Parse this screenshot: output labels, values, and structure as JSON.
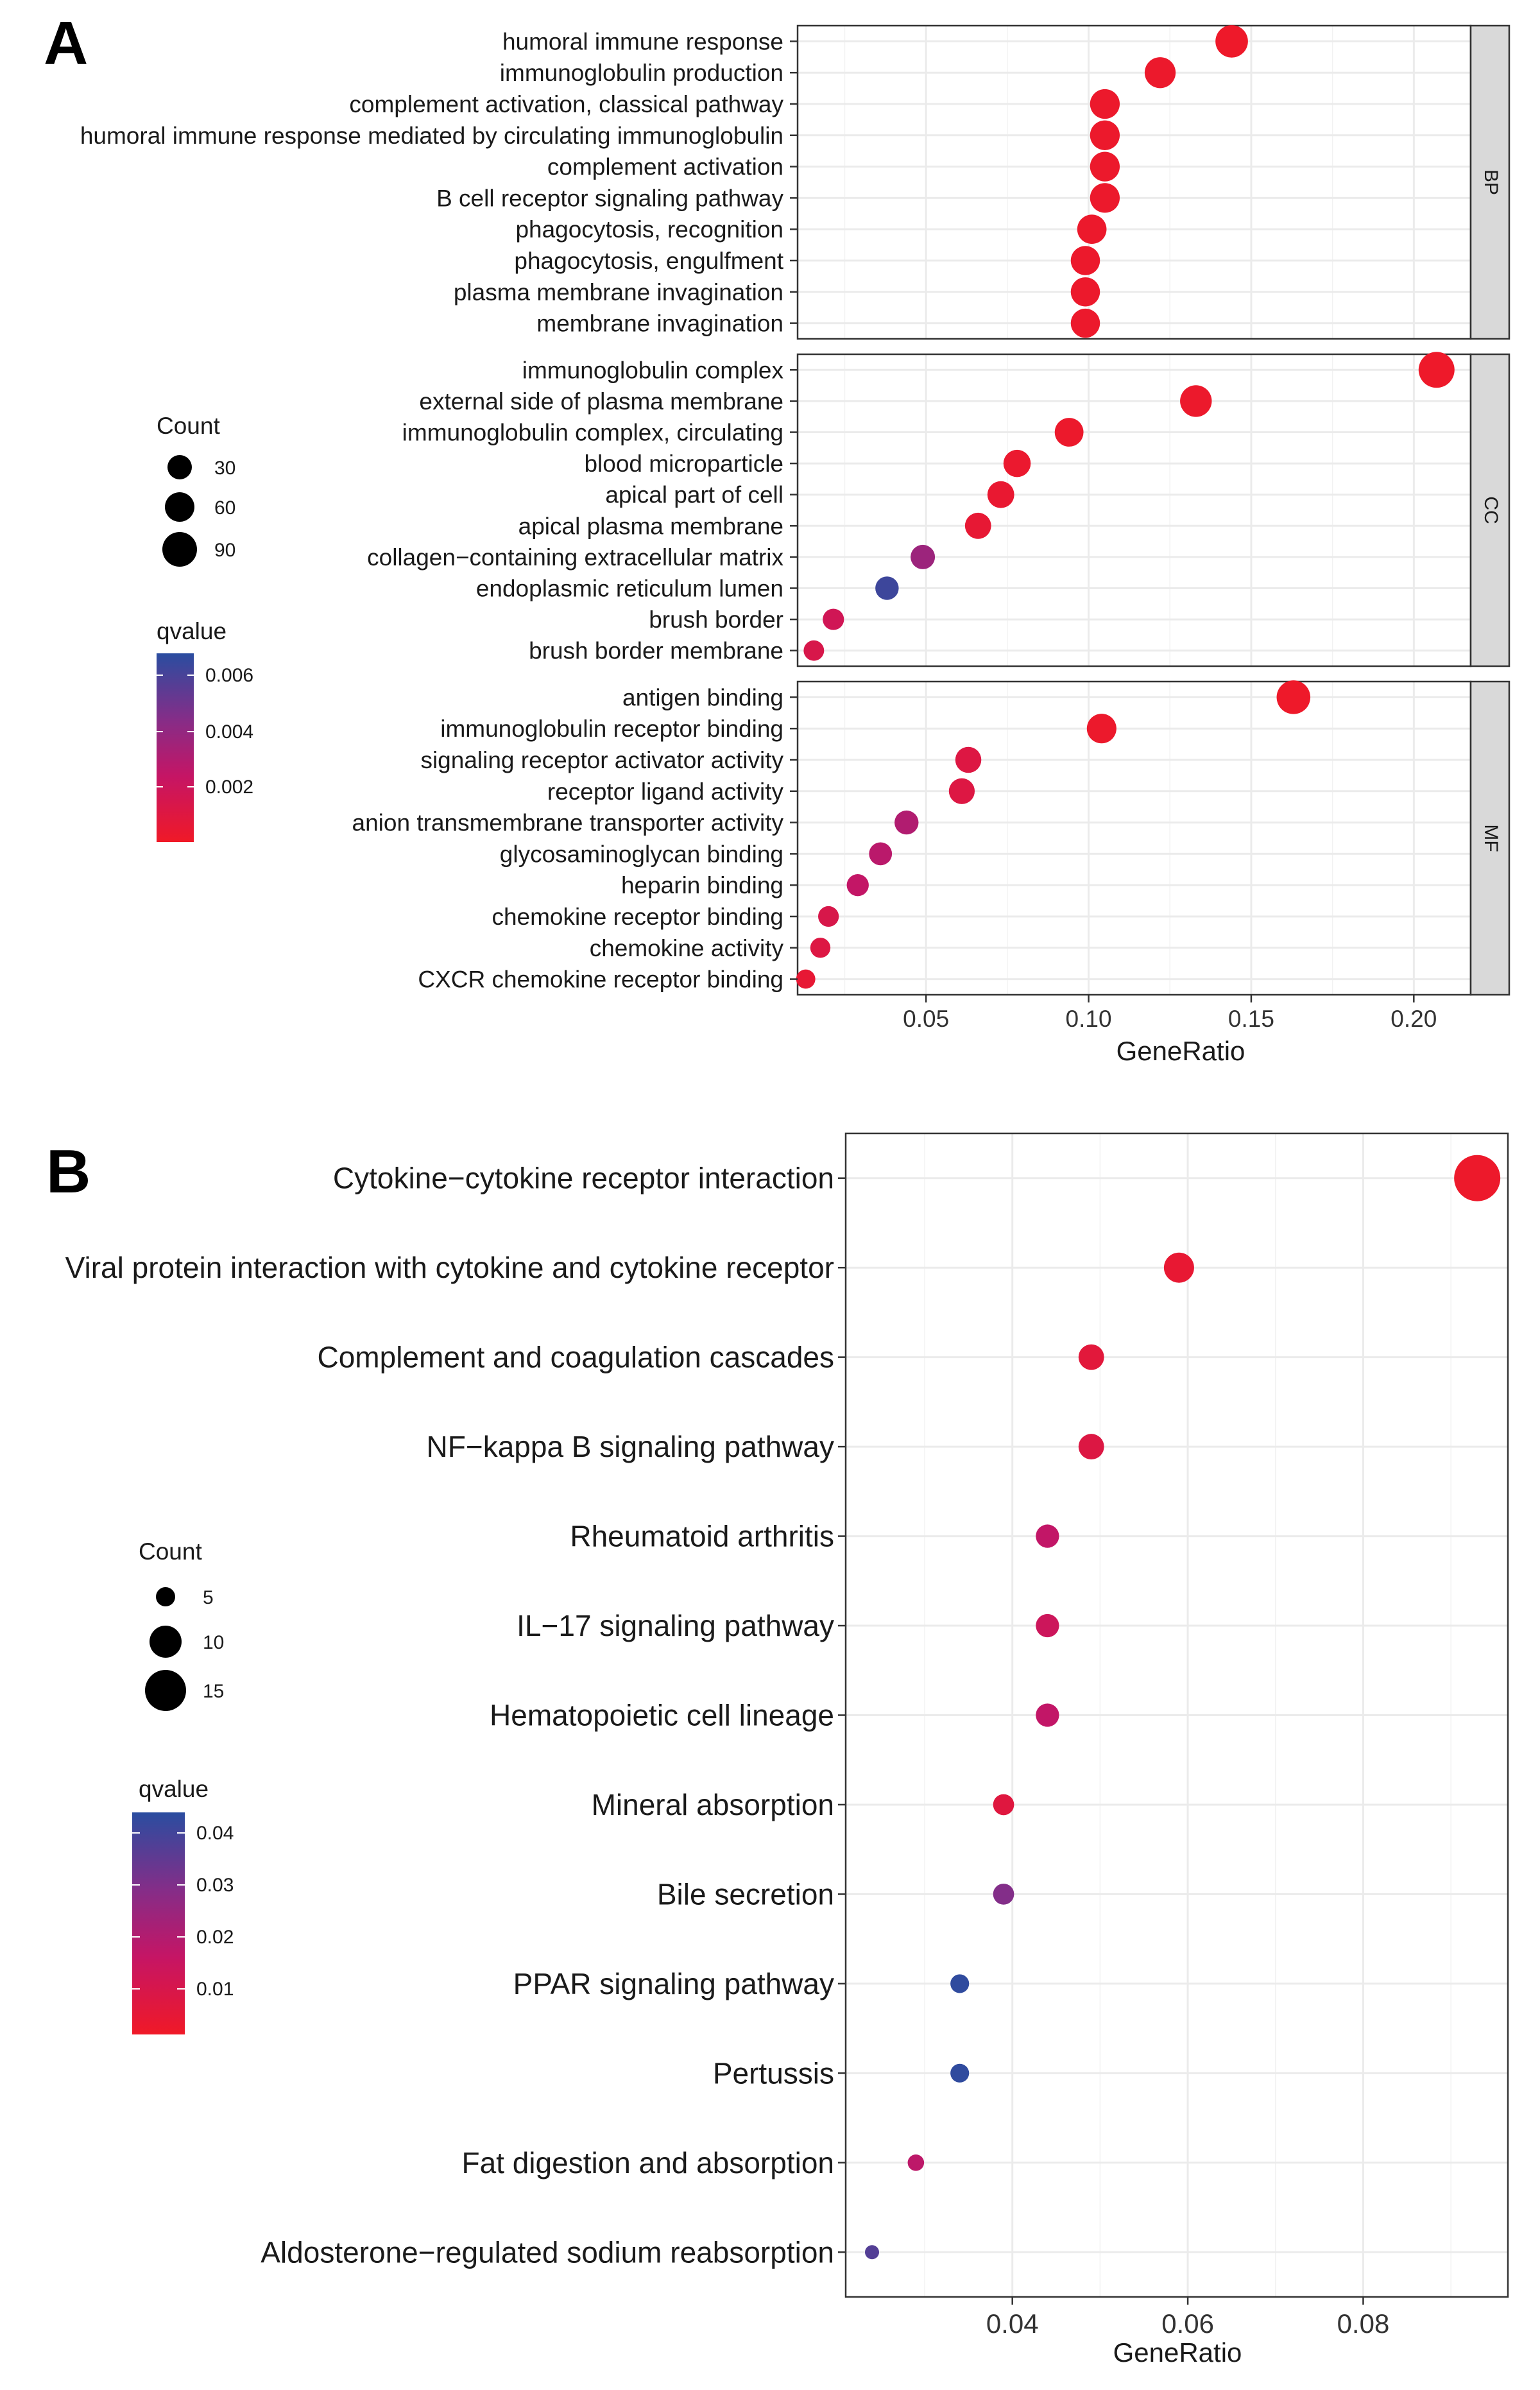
{
  "panel_a": {
    "letter": "A",
    "x_ticks": [
      "0.05",
      "0.10",
      "0.15",
      "0.20"
    ],
    "count_legend": {
      "title": "Count",
      "labels": [
        "30",
        "60",
        "90"
      ]
    },
    "qvalue_legend": {
      "title": "qvalue",
      "labels": [
        "0.006",
        "0.004",
        "0.002"
      ]
    }
  },
  "panel_b": {
    "letter": "B",
    "x_ticks": [
      "0.04",
      "0.06",
      "0.08"
    ],
    "count_legend": {
      "title": "Count",
      "labels": [
        "5",
        "10",
        "15"
      ]
    },
    "qvalue_legend": {
      "title": "qvalue",
      "labels": [
        "0.04",
        "0.03",
        "0.02",
        "0.01"
      ]
    }
  },
  "colors": {
    "low_q": "#e8192c",
    "high_q": "#2a4da0",
    "strip_bg": "#d9d9d9",
    "grid": "#ebebeb"
  },
  "chart_data": [
    {
      "type": "scatter",
      "title": "",
      "xlabel": "GeneRatio",
      "ylabel": "",
      "xlim": [
        0.0105,
        0.2175
      ],
      "x_ticks": [
        0.05,
        0.1,
        0.15,
        0.2
      ],
      "size_var": "Count",
      "color_var": "qvalue",
      "qvalue_range": [
        0.0,
        0.007
      ],
      "facets": [
        {
          "label": "BP",
          "terms": [
            {
              "term": "humoral immune response",
              "x": 0.144,
              "count": 87,
              "q": 0.0001
            },
            {
              "term": "immunoglobulin production",
              "x": 0.122,
              "count": 74,
              "q": 0.0002
            },
            {
              "term": "complement activation, classical pathway",
              "x": 0.105,
              "count": 64,
              "q": 0.0002
            },
            {
              "term": "humoral immune response mediated by circulating immunoglobulin",
              "x": 0.105,
              "count": 64,
              "q": 0.0002
            },
            {
              "term": "complement activation",
              "x": 0.105,
              "count": 64,
              "q": 0.0002
            },
            {
              "term": "B cell receptor signaling pathway",
              "x": 0.105,
              "count": 64,
              "q": 0.0002
            },
            {
              "term": "phagocytosis, recognition",
              "x": 0.101,
              "count": 61,
              "q": 0.0002
            },
            {
              "term": "phagocytosis, engulfment",
              "x": 0.099,
              "count": 60,
              "q": 0.0002
            },
            {
              "term": "plasma membrane invagination",
              "x": 0.099,
              "count": 60,
              "q": 0.0002
            },
            {
              "term": "membrane invagination",
              "x": 0.099,
              "count": 60,
              "q": 0.0002
            }
          ]
        },
        {
          "label": "CC",
          "terms": [
            {
              "term": "immunoglobulin complex",
              "x": 0.207,
              "count": 120,
              "q": 0.0001
            },
            {
              "term": "external side of plasma membrane",
              "x": 0.133,
              "count": 80,
              "q": 0.0002
            },
            {
              "term": "immunoglobulin complex, circulating",
              "x": 0.094,
              "count": 57,
              "q": 0.0002
            },
            {
              "term": "blood microparticle",
              "x": 0.078,
              "count": 47,
              "q": 0.0003
            },
            {
              "term": "apical part of cell",
              "x": 0.073,
              "count": 44,
              "q": 0.0004
            },
            {
              "term": "apical plasma membrane",
              "x": 0.066,
              "count": 40,
              "q": 0.0005
            },
            {
              "term": "collagen−containing extracellular matrix",
              "x": 0.049,
              "count": 30,
              "q": 0.0038
            },
            {
              "term": "endoplasmic reticulum lumen",
              "x": 0.038,
              "count": 25,
              "q": 0.0065
            },
            {
              "term": "brush border",
              "x": 0.0215,
              "count": 16,
              "q": 0.0018
            },
            {
              "term": "brush border membrane",
              "x": 0.0155,
              "count": 13,
              "q": 0.0014
            }
          ]
        },
        {
          "label": "MF",
          "terms": [
            {
              "term": "antigen binding",
              "x": 0.163,
              "count": 98,
              "q": 0.0001
            },
            {
              "term": "immunoglobulin receptor binding",
              "x": 0.104,
              "count": 63,
              "q": 0.0002
            },
            {
              "term": "signaling receptor activator activity",
              "x": 0.063,
              "count": 39,
              "q": 0.0011
            },
            {
              "term": "receptor ligand activity",
              "x": 0.061,
              "count": 38,
              "q": 0.0011
            },
            {
              "term": "anion transmembrane transporter activity",
              "x": 0.044,
              "count": 28,
              "q": 0.0031
            },
            {
              "term": "glycosaminoglycan binding",
              "x": 0.036,
              "count": 23,
              "q": 0.0028
            },
            {
              "term": "heparin binding",
              "x": 0.029,
              "count": 19,
              "q": 0.0025
            },
            {
              "term": "chemokine receptor binding",
              "x": 0.02,
              "count": 14,
              "q": 0.0014
            },
            {
              "term": "chemokine activity",
              "x": 0.0175,
              "count": 12,
              "q": 0.0011
            },
            {
              "term": "CXCR chemokine receptor binding",
              "x": 0.013,
              "count": 9,
              "q": 0.0005
            }
          ]
        }
      ],
      "count_legend": [
        30,
        60,
        90
      ],
      "qvalue_legend": [
        0.006,
        0.004,
        0.002
      ]
    },
    {
      "type": "scatter",
      "title": "",
      "xlabel": "GeneRatio",
      "ylabel": "",
      "xlim": [
        0.021,
        0.0965
      ],
      "x_ticks": [
        0.04,
        0.06,
        0.08
      ],
      "size_var": "Count",
      "color_var": "qvalue",
      "qvalue_range": [
        0.0,
        0.044
      ],
      "terms": [
        {
          "term": "Cytokine−cytokine receptor interaction",
          "x": 0.093,
          "count": 19,
          "q": 0.001
        },
        {
          "term": "Viral protein interaction with cytokine and cytokine receptor",
          "x": 0.059,
          "count": 12,
          "q": 0.003
        },
        {
          "term": "Complement and coagulation cascades",
          "x": 0.049,
          "count": 10,
          "q": 0.005
        },
        {
          "term": "NF−kappa B signaling pathway",
          "x": 0.049,
          "count": 10,
          "q": 0.007
        },
        {
          "term": "Rheumatoid arthritis",
          "x": 0.044,
          "count": 9,
          "q": 0.016
        },
        {
          "term": "IL−17 signaling pathway",
          "x": 0.044,
          "count": 9,
          "q": 0.013
        },
        {
          "term": "Hematopoietic cell lineage",
          "x": 0.044,
          "count": 9,
          "q": 0.016
        },
        {
          "term": "Mineral absorption",
          "x": 0.039,
          "count": 8,
          "q": 0.006
        },
        {
          "term": "Bile secretion",
          "x": 0.039,
          "count": 8,
          "q": 0.029
        },
        {
          "term": "PPAR signaling pathway",
          "x": 0.034,
          "count": 7,
          "q": 0.043
        },
        {
          "term": "Pertussis",
          "x": 0.034,
          "count": 7,
          "q": 0.043
        },
        {
          "term": "Fat digestion and absorption",
          "x": 0.029,
          "count": 6,
          "q": 0.017
        },
        {
          "term": "Aldosterone−regulated sodium reabsorption",
          "x": 0.024,
          "count": 5,
          "q": 0.037
        }
      ],
      "count_legend": [
        5,
        10,
        15
      ],
      "qvalue_legend": [
        0.04,
        0.03,
        0.02,
        0.01
      ]
    }
  ]
}
